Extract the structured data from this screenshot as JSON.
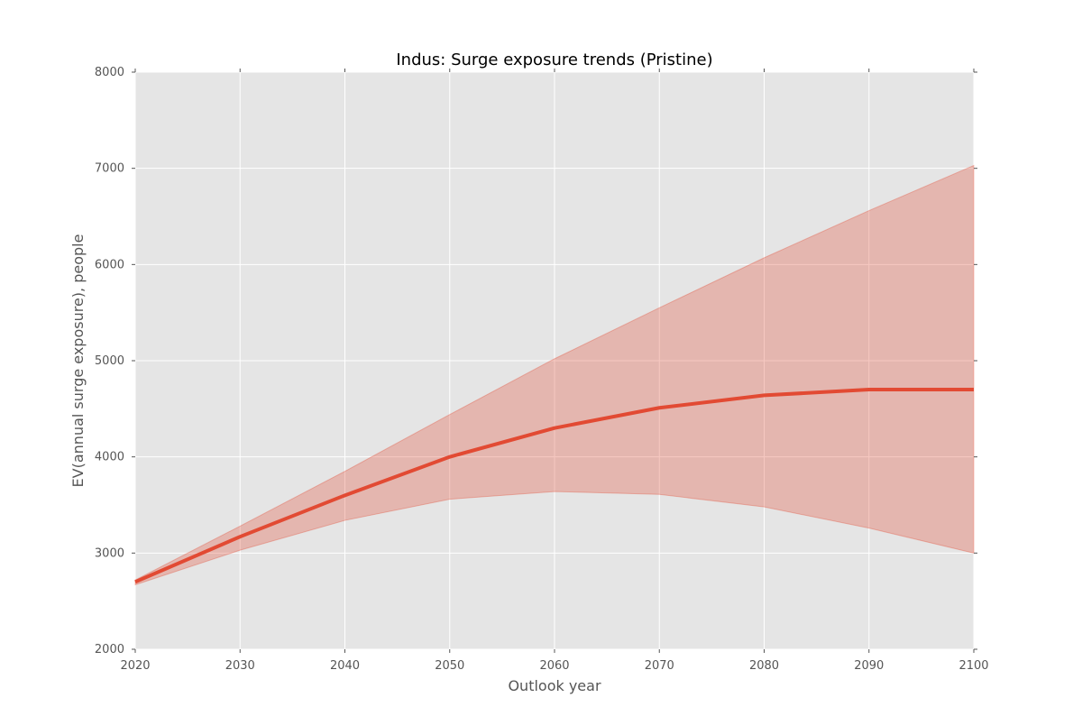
{
  "chart_data": {
    "type": "area",
    "title": "Indus: Surge exposure trends (Pristine)",
    "xlabel": "Outlook year",
    "ylabel": "EV(annual surge exposure), people",
    "xlim": [
      2020,
      2100
    ],
    "ylim": [
      2000,
      8000
    ],
    "x_ticks": [
      2020,
      2030,
      2040,
      2050,
      2060,
      2070,
      2080,
      2090,
      2100
    ],
    "x_tick_labels": [
      "2020",
      "2030",
      "2040",
      "2050",
      "2060",
      "2070",
      "2080",
      "2090",
      "2100"
    ],
    "y_ticks": [
      2000,
      3000,
      4000,
      5000,
      6000,
      7000,
      8000
    ],
    "y_tick_labels": [
      "2000",
      "3000",
      "4000",
      "5000",
      "6000",
      "7000",
      "8000"
    ],
    "grid": true,
    "x": [
      2020,
      2030,
      2040,
      2050,
      2060,
      2070,
      2080,
      2090,
      2100
    ],
    "series": [
      {
        "values": [
          2700,
          3170,
          3600,
          4000,
          4300,
          4510,
          4640,
          4700,
          4700
        ],
        "lower": [
          2670,
          3030,
          3340,
          3560,
          3640,
          3610,
          3480,
          3260,
          3000
        ],
        "upper": [
          2720,
          3280,
          3850,
          4440,
          5020,
          5550,
          6070,
          6560,
          7030
        ]
      }
    ],
    "colors": {
      "line": "#e24a33",
      "band": "#e24a33",
      "plot_background": "#e5e5e5",
      "grid": "#ffffff",
      "text": "#555555",
      "title": "#000000"
    }
  }
}
